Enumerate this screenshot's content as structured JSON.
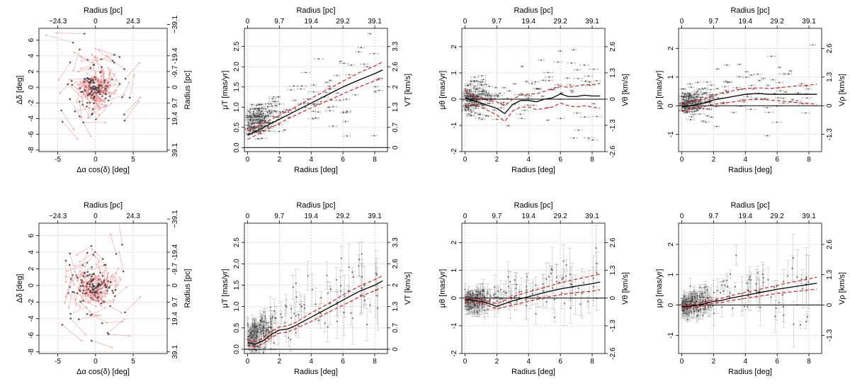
{
  "chart_data": [
    {
      "id": "vec1",
      "type": "vector",
      "panel": "vector-map-top",
      "xlabel": "Δα cos(δ) [deg]",
      "ylabel": "Δδ [deg]",
      "toplabel": "Radius [pc]",
      "rightlabel": "Radius [pc]",
      "xlim": [
        -7.5,
        9.5
      ],
      "ylim": [
        -8.2,
        7.5
      ],
      "xticks": [
        "-5",
        "0",
        "5"
      ],
      "xtick_vals": [
        -5,
        0,
        5
      ],
      "yticks": [
        "-8",
        "-6",
        "-4",
        "-2",
        "0",
        "2",
        "4",
        "6"
      ],
      "ytick_vals": [
        -8,
        -6,
        -4,
        -2,
        0,
        2,
        4,
        6
      ],
      "topticks": [
        "−24.3",
        "0",
        "24.3"
      ],
      "toptick_vals": [
        -5,
        0,
        5
      ],
      "rightticks": [
        "39.1",
        "19.4",
        "9.7",
        "0",
        "-9.7",
        "-19.4",
        "−39.1"
      ],
      "righttick_vals": [
        -8,
        -4,
        -2,
        0,
        2,
        4,
        8
      ],
      "arrow_scale": 1.0
    },
    {
      "id": "mut1",
      "type": "scatter",
      "panel": "mu-t-top",
      "xlabel": "Radius [deg]",
      "ylabel": "μT [mas/yr]",
      "toplabel": "Radius [pc]",
      "rightlabel": "VT [km/s]",
      "xlim": [
        -0.2,
        8.8
      ],
      "ylim": [
        -0.1,
        2.95
      ],
      "xticks": [
        "0",
        "2",
        "4",
        "6",
        "8"
      ],
      "xtick_vals": [
        0,
        2,
        4,
        6,
        8
      ],
      "yticks": [
        "0.0",
        "0.5",
        "1.0",
        "1.5",
        "2.0",
        "2.5"
      ],
      "ytick_vals": [
        0,
        0.5,
        1,
        1.5,
        2,
        2.5
      ],
      "topticks": [
        "0",
        "9.7",
        "19.4",
        "29.2",
        "39.1"
      ],
      "toptick_vals": [
        0,
        2,
        4,
        6,
        8
      ],
      "rightticks": [
        "0",
        "0.7",
        "1.3",
        "2",
        "2.6",
        "3.3"
      ],
      "righttick_vals": [
        0,
        0.5,
        1,
        1.5,
        2,
        2.5
      ],
      "zero_line": 0,
      "fit_x": [
        0,
        1,
        2,
        3,
        4,
        5,
        6,
        7,
        8,
        8.5
      ],
      "fit_y": [
        0.3,
        0.5,
        0.7,
        0.9,
        1.1,
        1.3,
        1.5,
        1.67,
        1.83,
        1.92
      ],
      "band_upper": [
        0.4,
        0.6,
        0.8,
        1.0,
        1.22,
        1.43,
        1.64,
        1.85,
        2.02,
        2.12
      ],
      "band_lower": [
        0.2,
        0.4,
        0.6,
        0.8,
        0.98,
        1.15,
        1.33,
        1.5,
        1.65,
        1.72
      ],
      "scatter_center": 0.55,
      "scatter_slope": 0.16,
      "scatter_spread": 0.5,
      "err_kind": "horizontal"
    },
    {
      "id": "muth1",
      "type": "scatter",
      "panel": "mu-theta-top",
      "xlabel": "Radius [deg]",
      "ylabel": "μθ [mas/yr]",
      "toplabel": "Radius [pc]",
      "rightlabel": "Vθ [km/s]",
      "xlim": [
        -0.2,
        8.8
      ],
      "ylim": [
        -2.0,
        2.7
      ],
      "xticks": [
        "0",
        "2",
        "4",
        "6",
        "8"
      ],
      "xtick_vals": [
        0,
        2,
        4,
        6,
        8
      ],
      "yticks": [
        "-2",
        "-1",
        "0",
        "1",
        "2"
      ],
      "ytick_vals": [
        -2,
        -1,
        0,
        1,
        2
      ],
      "topticks": [
        "0",
        "9.7",
        "19.4",
        "29.2",
        "39.1"
      ],
      "toptick_vals": [
        0,
        2,
        4,
        6,
        8
      ],
      "rightticks": [
        "-2.6",
        "-1.3",
        "0",
        "1.3",
        "2.6"
      ],
      "righttick_vals": [
        -2,
        -1,
        0,
        1,
        2
      ],
      "zero_line": 0,
      "fit_x": [
        0,
        0.5,
        1,
        1.5,
        2,
        2.5,
        3,
        3.5,
        4,
        4.5,
        5,
        5.5,
        6,
        6.5,
        7,
        7.5,
        8,
        8.5
      ],
      "fit_y": [
        0.05,
        -0.05,
        -0.15,
        -0.25,
        -0.35,
        -0.55,
        -0.2,
        -0.05,
        -0.05,
        -0.1,
        0.0,
        0.05,
        0.2,
        0.1,
        0.1,
        0.15,
        0.12,
        0.12
      ],
      "band_upper": [
        0.35,
        0.1,
        0.0,
        -0.05,
        -0.1,
        -0.25,
        0.0,
        0.15,
        0.2,
        0.2,
        0.3,
        0.4,
        0.5,
        0.45,
        0.5,
        0.55,
        0.55,
        0.6
      ],
      "band_lower": [
        -0.25,
        -0.2,
        -0.3,
        -0.45,
        -0.6,
        -0.85,
        -0.45,
        -0.3,
        -0.3,
        -0.4,
        -0.35,
        -0.3,
        -0.15,
        -0.25,
        -0.3,
        -0.25,
        -0.3,
        -0.35
      ],
      "scatter_center": 0.0,
      "scatter_slope": 0.05,
      "scatter_spread": 0.7,
      "err_kind": "horizontal"
    },
    {
      "id": "murho1",
      "type": "scatter",
      "panel": "mu-rho-top",
      "xlabel": "Radius [deg]",
      "ylabel": "μρ [mas/yr]",
      "toplabel": "Radius [pc]",
      "rightlabel": "Vρ [km/s]",
      "xlim": [
        -0.2,
        8.8
      ],
      "ylim": [
        -1.6,
        2.7
      ],
      "xticks": [
        "0",
        "2",
        "4",
        "6",
        "8"
      ],
      "xtick_vals": [
        0,
        2,
        4,
        6,
        8
      ],
      "yticks": [
        "-1",
        "0",
        "1",
        "2"
      ],
      "ytick_vals": [
        -1,
        0,
        1,
        2
      ],
      "topticks": [
        "0",
        "9.7",
        "19.4",
        "29.2",
        "39.1"
      ],
      "toptick_vals": [
        0,
        2,
        4,
        6,
        8
      ],
      "rightticks": [
        "-1.3",
        "0",
        "1.3",
        "2.6"
      ],
      "righttick_vals": [
        -1,
        0,
        1,
        2
      ],
      "zero_line": 0,
      "fit_x": [
        0,
        0.5,
        1,
        1.5,
        2,
        2.5,
        3,
        3.5,
        4,
        4.5,
        5,
        5.5,
        6,
        6.5,
        7,
        7.5,
        8,
        8.5
      ],
      "fit_y": [
        -0.05,
        0.0,
        0.05,
        0.1,
        0.2,
        0.25,
        0.3,
        0.35,
        0.4,
        0.42,
        0.42,
        0.4,
        0.4,
        0.4,
        0.4,
        0.4,
        0.4,
        0.4
      ],
      "band_upper": [
        0.1,
        0.12,
        0.18,
        0.25,
        0.35,
        0.45,
        0.5,
        0.55,
        0.6,
        0.62,
        0.62,
        0.6,
        0.62,
        0.65,
        0.68,
        0.7,
        0.72,
        0.75
      ],
      "band_lower": [
        -0.2,
        -0.12,
        -0.08,
        -0.02,
        0.05,
        0.08,
        0.12,
        0.15,
        0.2,
        0.22,
        0.22,
        0.2,
        0.18,
        0.15,
        0.12,
        0.1,
        0.08,
        0.05
      ],
      "scatter_center": 0.1,
      "scatter_slope": 0.1,
      "scatter_spread": 0.6,
      "err_kind": "horizontal"
    },
    {
      "id": "vec2",
      "type": "vector",
      "panel": "vector-map-bottom",
      "xlabel": "Δα cos(δ) [deg]",
      "ylabel": "Δδ [deg]",
      "toplabel": "Radius [pc]",
      "rightlabel": "Radius [pc]",
      "xlim": [
        -7.5,
        9.5
      ],
      "ylim": [
        -8.2,
        7.5
      ],
      "xticks": [
        "-5",
        "0",
        "5"
      ],
      "xtick_vals": [
        -5,
        0,
        5
      ],
      "yticks": [
        "-8",
        "-6",
        "-4",
        "-2",
        "0",
        "2",
        "4",
        "6"
      ],
      "ytick_vals": [
        -8,
        -6,
        -4,
        -2,
        0,
        2,
        4,
        6
      ],
      "topticks": [
        "−24.3",
        "0",
        "24.3"
      ],
      "toptick_vals": [
        -5,
        0,
        5
      ],
      "rightticks": [
        "39.1",
        "19.4",
        "9.7",
        "0",
        "-9.7",
        "-19.4",
        "−39.1"
      ],
      "righttick_vals": [
        -8,
        -4,
        -2,
        0,
        2,
        4,
        8
      ],
      "arrow_scale": 0.9
    },
    {
      "id": "mut2",
      "type": "scatter",
      "panel": "mu-t-bottom",
      "xlabel": "Radius [deg]",
      "ylabel": "μT [mas/yr]",
      "toplabel": "Radius [pc]",
      "rightlabel": "VT [km/s]",
      "xlim": [
        -0.2,
        8.8
      ],
      "ylim": [
        -0.1,
        2.95
      ],
      "xticks": [
        "0",
        "2",
        "4",
        "6",
        "8"
      ],
      "xtick_vals": [
        0,
        2,
        4,
        6,
        8
      ],
      "yticks": [
        "0.0",
        "0.5",
        "1.0",
        "1.5",
        "2.0",
        "2.5"
      ],
      "ytick_vals": [
        0,
        0.5,
        1,
        1.5,
        2,
        2.5
      ],
      "topticks": [
        "0",
        "9.7",
        "19.4",
        "29.2",
        "39.1"
      ],
      "toptick_vals": [
        0,
        2,
        4,
        6,
        8
      ],
      "rightticks": [
        "0",
        "0.7",
        "1.3",
        "2",
        "2.6",
        "3.3"
      ],
      "righttick_vals": [
        0,
        0.5,
        1,
        1.5,
        2,
        2.5
      ],
      "zero_line": 0,
      "fit_x": [
        0,
        0.5,
        1,
        1.5,
        2,
        2.5,
        3,
        4,
        5,
        6,
        7,
        8,
        8.5
      ],
      "fit_y": [
        0.15,
        0.12,
        0.2,
        0.35,
        0.45,
        0.47,
        0.55,
        0.75,
        0.95,
        1.15,
        1.35,
        1.5,
        1.6
      ],
      "band_upper": [
        0.22,
        0.18,
        0.28,
        0.42,
        0.52,
        0.55,
        0.62,
        0.85,
        1.05,
        1.27,
        1.47,
        1.63,
        1.72
      ],
      "band_lower": [
        0.08,
        0.06,
        0.13,
        0.28,
        0.38,
        0.4,
        0.48,
        0.65,
        0.85,
        1.03,
        1.22,
        1.37,
        1.45
      ],
      "scatter_center": 0.25,
      "scatter_slope": 0.17,
      "scatter_spread": 0.45,
      "err_kind": "vertical"
    },
    {
      "id": "muth2",
      "type": "scatter",
      "panel": "mu-theta-bottom",
      "xlabel": "Radius [deg]",
      "ylabel": "μθ [mas/yr]",
      "toplabel": "Radius [pc]",
      "rightlabel": "Vθ [km/s]",
      "xlim": [
        -0.2,
        8.8
      ],
      "ylim": [
        -2.0,
        2.7
      ],
      "xticks": [
        "0",
        "2",
        "4",
        "6",
        "8"
      ],
      "xtick_vals": [
        0,
        2,
        4,
        6,
        8
      ],
      "yticks": [
        "-2",
        "-1",
        "0",
        "1",
        "2"
      ],
      "ytick_vals": [
        -2,
        -1,
        0,
        1,
        2
      ],
      "topticks": [
        "0",
        "9.7",
        "19.4",
        "29.2",
        "39.1"
      ],
      "toptick_vals": [
        0,
        2,
        4,
        6,
        8
      ],
      "rightticks": [
        "-2.6",
        "-1.3",
        "0",
        "1.3",
        "2.6"
      ],
      "righttick_vals": [
        -2,
        -1,
        0,
        1,
        2
      ],
      "zero_line": 0,
      "fit_x": [
        0,
        0.5,
        1,
        1.5,
        2,
        2.5,
        3,
        4,
        5,
        6,
        7,
        8,
        8.5
      ],
      "fit_y": [
        -0.05,
        -0.08,
        -0.12,
        -0.2,
        -0.3,
        -0.2,
        -0.1,
        0.05,
        0.2,
        0.33,
        0.43,
        0.52,
        0.58
      ],
      "band_upper": [
        0.02,
        -0.02,
        -0.05,
        -0.12,
        -0.2,
        -0.08,
        0.05,
        0.22,
        0.38,
        0.55,
        0.68,
        0.8,
        0.87
      ],
      "band_lower": [
        -0.12,
        -0.14,
        -0.19,
        -0.28,
        -0.4,
        -0.32,
        -0.25,
        -0.12,
        0.02,
        0.12,
        0.2,
        0.25,
        0.3
      ],
      "scatter_center": -0.1,
      "scatter_slope": 0.08,
      "scatter_spread": 0.45,
      "err_kind": "vertical"
    },
    {
      "id": "murho2",
      "type": "scatter",
      "panel": "mu-rho-bottom",
      "xlabel": "Radius [deg]",
      "ylabel": "μρ [mas/yr]",
      "toplabel": "Radius [pc]",
      "rightlabel": "Vρ [km/s]",
      "xlim": [
        -0.2,
        8.8
      ],
      "ylim": [
        -1.6,
        2.7
      ],
      "xticks": [
        "0",
        "2",
        "4",
        "6",
        "8"
      ],
      "xtick_vals": [
        0,
        2,
        4,
        6,
        8
      ],
      "yticks": [
        "-1",
        "0",
        "1",
        "2"
      ],
      "ytick_vals": [
        -1,
        0,
        1,
        2
      ],
      "topticks": [
        "0",
        "9.7",
        "19.4",
        "29.2",
        "39.1"
      ],
      "toptick_vals": [
        0,
        2,
        4,
        6,
        8
      ],
      "rightticks": [
        "-1.3",
        "0",
        "1.3",
        "2.6"
      ],
      "righttick_vals": [
        -1,
        0,
        1,
        2
      ],
      "zero_line": 0,
      "fit_x": [
        0,
        0.5,
        1,
        1.5,
        2,
        2.5,
        3,
        4,
        5,
        6,
        7,
        8,
        8.5
      ],
      "fit_y": [
        -0.05,
        -0.05,
        0.0,
        0.05,
        0.12,
        0.15,
        0.22,
        0.32,
        0.42,
        0.52,
        0.6,
        0.68,
        0.72
      ],
      "band_upper": [
        0.0,
        0.0,
        0.05,
        0.1,
        0.18,
        0.22,
        0.3,
        0.42,
        0.53,
        0.65,
        0.76,
        0.86,
        0.92
      ],
      "band_lower": [
        -0.1,
        -0.1,
        -0.05,
        0.0,
        0.06,
        0.08,
        0.14,
        0.22,
        0.3,
        0.38,
        0.44,
        0.5,
        0.52
      ],
      "scatter_center": 0.0,
      "scatter_slope": 0.1,
      "scatter_spread": 0.45,
      "err_kind": "vertical"
    }
  ],
  "colors": {
    "fit": "#000000",
    "band": "#e41a1c",
    "points": "#333333",
    "arrows": "#f08080",
    "grid": "#bdbdbd"
  }
}
